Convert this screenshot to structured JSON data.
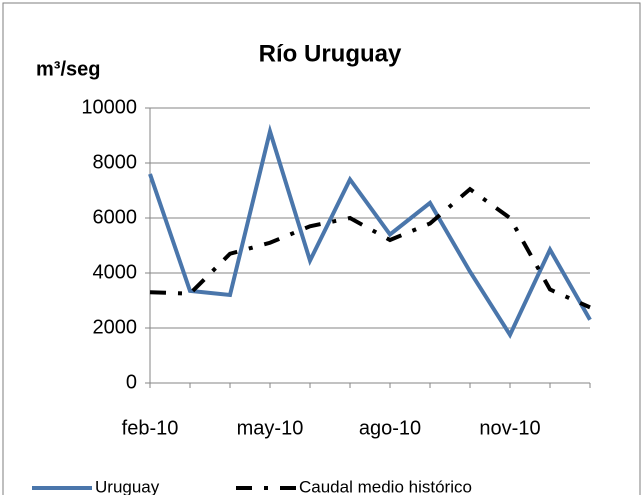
{
  "chart_data": {
    "type": "line",
    "title": "Río Uruguay",
    "y_label": "m³/seg",
    "categories": [
      "feb-10",
      null,
      null,
      "may-10",
      null,
      null,
      "ago-10",
      null,
      null,
      "nov-10",
      null,
      null
    ],
    "series": [
      {
        "name": "Uruguay",
        "color": "#4a76ab",
        "line_style": "solid",
        "values": [
          7600,
          3350,
          3200,
          9150,
          4450,
          7400,
          5400,
          6550,
          4050,
          1750,
          4850,
          2300
        ]
      },
      {
        "name": "Caudal medio histórico",
        "color": "#000000",
        "line_style": "dash-dot",
        "values": [
          3300,
          3250,
          4700,
          5100,
          5700,
          6000,
          5200,
          5800,
          7050,
          6000,
          3400,
          2750
        ]
      }
    ],
    "ylim": [
      0,
      10000
    ],
    "yticks": [
      0,
      2000,
      4000,
      6000,
      8000,
      10000
    ],
    "grid": true,
    "legend": "bottom"
  }
}
